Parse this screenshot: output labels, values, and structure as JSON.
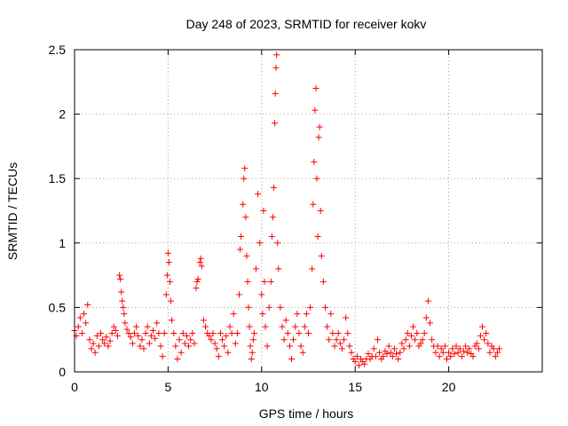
{
  "chart_data": {
    "type": "scatter",
    "title": "Day 248 of 2023, SRMTID for receiver kokv",
    "xlabel": "GPS time / hours",
    "ylabel": "SRMTID / TECUs",
    "xlim": [
      0,
      25
    ],
    "ylim": [
      0,
      2.5
    ],
    "xticks": [
      0,
      5,
      10,
      15,
      20
    ],
    "xtick_labels": [
      "0",
      "5",
      "10",
      "15",
      "20"
    ],
    "yticks": [
      0,
      0.5,
      1,
      1.5,
      2,
      2.5
    ],
    "ytick_labels": [
      "0",
      "0.5",
      "1",
      "1.5",
      "2",
      "2.5"
    ],
    "grid": true,
    "marker": "plus",
    "series": [
      {
        "name": "SRMTID",
        "color": "#ff0000",
        "points": [
          [
            0.0,
            0.32
          ],
          [
            0.1,
            0.28
          ],
          [
            0.2,
            0.35
          ],
          [
            0.3,
            0.42
          ],
          [
            0.4,
            0.3
          ],
          [
            0.5,
            0.45
          ],
          [
            0.6,
            0.38
          ],
          [
            0.7,
            0.52
          ],
          [
            0.8,
            0.25
          ],
          [
            0.9,
            0.18
          ],
          [
            1.0,
            0.22
          ],
          [
            1.1,
            0.15
          ],
          [
            1.2,
            0.28
          ],
          [
            1.3,
            0.2
          ],
          [
            1.4,
            0.3
          ],
          [
            1.5,
            0.25
          ],
          [
            1.6,
            0.22
          ],
          [
            1.7,
            0.27
          ],
          [
            1.8,
            0.2
          ],
          [
            1.9,
            0.24
          ],
          [
            2.0,
            0.3
          ],
          [
            2.1,
            0.35
          ],
          [
            2.2,
            0.32
          ],
          [
            2.3,
            0.28
          ],
          [
            2.4,
            0.75
          ],
          [
            2.45,
            0.72
          ],
          [
            2.5,
            0.62
          ],
          [
            2.55,
            0.55
          ],
          [
            2.6,
            0.5
          ],
          [
            2.65,
            0.45
          ],
          [
            2.7,
            0.38
          ],
          [
            2.8,
            0.33
          ],
          [
            2.9,
            0.3
          ],
          [
            3.0,
            0.27
          ],
          [
            3.1,
            0.22
          ],
          [
            3.2,
            0.3
          ],
          [
            3.3,
            0.35
          ],
          [
            3.4,
            0.28
          ],
          [
            3.5,
            0.2
          ],
          [
            3.6,
            0.25
          ],
          [
            3.7,
            0.18
          ],
          [
            3.8,
            0.3
          ],
          [
            3.9,
            0.35
          ],
          [
            4.0,
            0.22
          ],
          [
            4.1,
            0.28
          ],
          [
            4.2,
            0.32
          ],
          [
            4.3,
            0.26
          ],
          [
            4.4,
            0.38
          ],
          [
            4.5,
            0.3
          ],
          [
            4.6,
            0.2
          ],
          [
            4.7,
            0.12
          ],
          [
            4.8,
            0.3
          ],
          [
            4.9,
            0.6
          ],
          [
            4.95,
            0.75
          ],
          [
            5.0,
            0.92
          ],
          [
            5.05,
            0.85
          ],
          [
            5.1,
            0.7
          ],
          [
            5.15,
            0.55
          ],
          [
            5.2,
            0.4
          ],
          [
            5.3,
            0.3
          ],
          [
            5.4,
            0.2
          ],
          [
            5.5,
            0.1
          ],
          [
            5.6,
            0.25
          ],
          [
            5.7,
            0.15
          ],
          [
            5.8,
            0.3
          ],
          [
            5.9,
            0.22
          ],
          [
            6.0,
            0.28
          ],
          [
            6.1,
            0.2
          ],
          [
            6.2,
            0.25
          ],
          [
            6.3,
            0.3
          ],
          [
            6.4,
            0.22
          ],
          [
            6.5,
            0.65
          ],
          [
            6.55,
            0.7
          ],
          [
            6.6,
            0.72
          ],
          [
            6.7,
            0.85
          ],
          [
            6.75,
            0.88
          ],
          [
            6.8,
            0.82
          ],
          [
            6.9,
            0.4
          ],
          [
            7.0,
            0.35
          ],
          [
            7.1,
            0.3
          ],
          [
            7.2,
            0.28
          ],
          [
            7.3,
            0.25
          ],
          [
            7.4,
            0.3
          ],
          [
            7.5,
            0.22
          ],
          [
            7.6,
            0.18
          ],
          [
            7.7,
            0.12
          ],
          [
            7.8,
            0.3
          ],
          [
            7.9,
            0.25
          ],
          [
            8.0,
            0.2
          ],
          [
            8.1,
            0.28
          ],
          [
            8.2,
            0.15
          ],
          [
            8.3,
            0.35
          ],
          [
            8.4,
            0.3
          ],
          [
            8.5,
            0.45
          ],
          [
            8.6,
            0.22
          ],
          [
            8.7,
            0.3
          ],
          [
            8.8,
            0.6
          ],
          [
            8.85,
            0.95
          ],
          [
            8.9,
            1.05
          ],
          [
            9.0,
            1.3
          ],
          [
            9.05,
            1.5
          ],
          [
            9.1,
            1.58
          ],
          [
            9.15,
            1.2
          ],
          [
            9.2,
            0.9
          ],
          [
            9.25,
            0.7
          ],
          [
            9.3,
            0.5
          ],
          [
            9.35,
            0.35
          ],
          [
            9.4,
            0.2
          ],
          [
            9.45,
            0.1
          ],
          [
            9.5,
            0.15
          ],
          [
            9.55,
            0.25
          ],
          [
            9.6,
            0.3
          ],
          [
            9.7,
            0.8
          ],
          [
            9.8,
            1.38
          ],
          [
            9.9,
            1.0
          ],
          [
            10.0,
            0.6
          ],
          [
            10.05,
            0.45
          ],
          [
            10.1,
            1.25
          ],
          [
            10.15,
            0.7
          ],
          [
            10.2,
            0.35
          ],
          [
            10.3,
            0.2
          ],
          [
            10.4,
            0.5
          ],
          [
            10.5,
            0.7
          ],
          [
            10.55,
            1.05
          ],
          [
            10.6,
            1.2
          ],
          [
            10.65,
            1.43
          ],
          [
            10.7,
            1.93
          ],
          [
            10.73,
            2.16
          ],
          [
            10.77,
            2.36
          ],
          [
            10.8,
            2.46
          ],
          [
            10.85,
            1.0
          ],
          [
            10.9,
            0.8
          ],
          [
            11.0,
            0.5
          ],
          [
            11.1,
            0.35
          ],
          [
            11.2,
            0.25
          ],
          [
            11.3,
            0.4
          ],
          [
            11.4,
            0.3
          ],
          [
            11.5,
            0.2
          ],
          [
            11.6,
            0.1
          ],
          [
            11.7,
            0.25
          ],
          [
            11.8,
            0.35
          ],
          [
            11.9,
            0.45
          ],
          [
            12.0,
            0.3
          ],
          [
            12.1,
            0.2
          ],
          [
            12.2,
            0.15
          ],
          [
            12.3,
            0.35
          ],
          [
            12.4,
            0.45
          ],
          [
            12.5,
            0.3
          ],
          [
            12.6,
            0.5
          ],
          [
            12.7,
            0.8
          ],
          [
            12.75,
            1.3
          ],
          [
            12.8,
            1.63
          ],
          [
            12.85,
            2.03
          ],
          [
            12.9,
            2.2
          ],
          [
            12.95,
            1.5
          ],
          [
            13.0,
            1.05
          ],
          [
            13.05,
            1.82
          ],
          [
            13.1,
            1.9
          ],
          [
            13.15,
            1.25
          ],
          [
            13.2,
            0.9
          ],
          [
            13.3,
            0.7
          ],
          [
            13.4,
            0.5
          ],
          [
            13.5,
            0.35
          ],
          [
            13.6,
            0.25
          ],
          [
            13.7,
            0.45
          ],
          [
            13.8,
            0.3
          ],
          [
            13.9,
            0.2
          ],
          [
            14.0,
            0.25
          ],
          [
            14.1,
            0.3
          ],
          [
            14.2,
            0.22
          ],
          [
            14.3,
            0.18
          ],
          [
            14.4,
            0.25
          ],
          [
            14.5,
            0.42
          ],
          [
            14.6,
            0.3
          ],
          [
            14.7,
            0.2
          ],
          [
            14.8,
            0.15
          ],
          [
            14.9,
            0.1
          ],
          [
            15.0,
            0.08
          ],
          [
            15.1,
            0.12
          ],
          [
            15.2,
            0.05
          ],
          [
            15.3,
            0.1
          ],
          [
            15.4,
            0.08
          ],
          [
            15.5,
            0.06
          ],
          [
            15.6,
            0.1
          ],
          [
            15.7,
            0.14
          ],
          [
            15.8,
            0.1
          ],
          [
            15.9,
            0.12
          ],
          [
            16.0,
            0.18
          ],
          [
            16.1,
            0.12
          ],
          [
            16.2,
            0.25
          ],
          [
            16.3,
            0.15
          ],
          [
            16.4,
            0.1
          ],
          [
            16.5,
            0.12
          ],
          [
            16.6,
            0.16
          ],
          [
            16.7,
            0.14
          ],
          [
            16.8,
            0.2
          ],
          [
            16.9,
            0.15
          ],
          [
            17.0,
            0.12
          ],
          [
            17.1,
            0.18
          ],
          [
            17.2,
            0.14
          ],
          [
            17.3,
            0.1
          ],
          [
            17.4,
            0.15
          ],
          [
            17.5,
            0.22
          ],
          [
            17.6,
            0.18
          ],
          [
            17.7,
            0.25
          ],
          [
            17.8,
            0.3
          ],
          [
            17.9,
            0.2
          ],
          [
            18.0,
            0.28
          ],
          [
            18.1,
            0.35
          ],
          [
            18.2,
            0.25
          ],
          [
            18.3,
            0.3
          ],
          [
            18.4,
            0.2
          ],
          [
            18.5,
            0.22
          ],
          [
            18.6,
            0.25
          ],
          [
            18.7,
            0.3
          ],
          [
            18.8,
            0.42
          ],
          [
            18.9,
            0.55
          ],
          [
            19.0,
            0.38
          ],
          [
            19.1,
            0.25
          ],
          [
            19.2,
            0.2
          ],
          [
            19.3,
            0.15
          ],
          [
            19.4,
            0.2
          ],
          [
            19.5,
            0.12
          ],
          [
            19.6,
            0.18
          ],
          [
            19.7,
            0.15
          ],
          [
            19.8,
            0.2
          ],
          [
            19.9,
            0.1
          ],
          [
            20.0,
            0.15
          ],
          [
            20.1,
            0.12
          ],
          [
            20.2,
            0.18
          ],
          [
            20.3,
            0.14
          ],
          [
            20.4,
            0.2
          ],
          [
            20.5,
            0.15
          ],
          [
            20.6,
            0.18
          ],
          [
            20.7,
            0.12
          ],
          [
            20.8,
            0.16
          ],
          [
            20.9,
            0.2
          ],
          [
            21.0,
            0.15
          ],
          [
            21.1,
            0.18
          ],
          [
            21.2,
            0.14
          ],
          [
            21.3,
            0.12
          ],
          [
            21.4,
            0.2
          ],
          [
            21.5,
            0.22
          ],
          [
            21.6,
            0.18
          ],
          [
            21.7,
            0.28
          ],
          [
            21.8,
            0.35
          ],
          [
            21.9,
            0.25
          ],
          [
            22.0,
            0.3
          ],
          [
            22.1,
            0.22
          ],
          [
            22.2,
            0.15
          ],
          [
            22.3,
            0.2
          ],
          [
            22.4,
            0.18
          ],
          [
            22.5,
            0.12
          ],
          [
            22.6,
            0.15
          ],
          [
            22.7,
            0.18
          ]
        ]
      }
    ]
  }
}
